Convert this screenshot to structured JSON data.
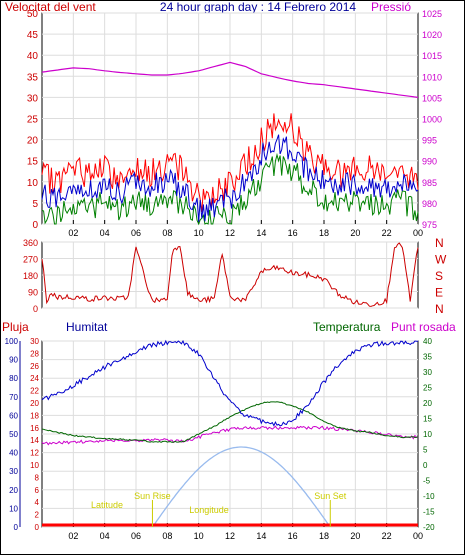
{
  "header": {
    "title": "24 hour graph day : 14 Febrero 2014",
    "left_label": "Velocitat del vent",
    "right_label": "Pressió"
  },
  "labels": {
    "pluja": "Pluja",
    "humitat": "Humitat",
    "temperatura": "Temperatura",
    "punt_rosada": "Punt rosada",
    "sunrise": "Sun Rise",
    "sunset": "Sun Set",
    "latitude": "Latitude",
    "longitude": "Longitude"
  },
  "colors": {
    "wind_max": "#ff0000",
    "wind_avg": "#0000cc",
    "wind_min": "#008000",
    "pressure": "#cc00cc",
    "direction": "#cc0000",
    "humidity": "#0000cc",
    "temperature": "#006600",
    "dewpoint": "#cc00cc",
    "solar": "#99bbee",
    "rain": "#ff0000",
    "text_red": "#cc0000",
    "text_blue": "#000099",
    "annotation": "#cccc00"
  },
  "chart_data": [
    {
      "name": "wind-pressure",
      "type": "line",
      "x_ticks": [
        "02",
        "04",
        "06",
        "08",
        "10",
        "12",
        "14",
        "16",
        "18",
        "20",
        "22",
        "00"
      ],
      "y_left_ticks": [
        "0",
        "5",
        "10",
        "15",
        "20",
        "25",
        "30",
        "35",
        "40",
        "45",
        "50"
      ],
      "y_left_range": [
        0,
        50
      ],
      "y_right_ticks": [
        "975",
        "980",
        "985",
        "990",
        "995",
        "1000",
        "1005",
        "1010",
        "1015",
        "1020",
        "1025"
      ],
      "y_right_range": [
        975,
        1025
      ],
      "hours": [
        0,
        1,
        2,
        3,
        4,
        5,
        6,
        7,
        8,
        9,
        10,
        11,
        12,
        13,
        14,
        15,
        16,
        17,
        18,
        19,
        20,
        21,
        22,
        23,
        24
      ],
      "wind_max": [
        11,
        10,
        13,
        12,
        13,
        10,
        14,
        12,
        14,
        13,
        6,
        7,
        9,
        14,
        20,
        24,
        23,
        16,
        14,
        12,
        13,
        13,
        12,
        13,
        9
      ],
      "wind_avg": [
        7,
        6,
        9,
        8,
        9,
        7,
        10,
        9,
        10,
        9,
        3,
        4,
        6,
        10,
        16,
        19,
        18,
        12,
        10,
        9,
        10,
        9,
        9,
        10,
        6
      ],
      "wind_min": [
        3,
        2,
        5,
        4,
        5,
        3,
        6,
        5,
        6,
        5,
        0,
        1,
        2,
        6,
        11,
        14,
        13,
        8,
        6,
        5,
        6,
        5,
        5,
        6,
        2
      ],
      "pressure": [
        1011,
        1011.5,
        1012,
        1011.8,
        1011.3,
        1010.9,
        1010.6,
        1010.3,
        1010.3,
        1010.7,
        1011.3,
        1012.3,
        1013.3,
        1012.3,
        1010.6,
        1009.7,
        1008.9,
        1008.3,
        1008,
        1007.5,
        1007,
        1006.5,
        1006,
        1005.5,
        1005
      ]
    },
    {
      "name": "wind-direction",
      "type": "line",
      "y_left_ticks": [
        "0",
        "90",
        "180",
        "270",
        "360"
      ],
      "y_range": [
        0,
        360
      ],
      "y_right_ticks": [
        "N",
        "W",
        "S",
        "E",
        "N"
      ],
      "hours": [
        0,
        0.3,
        0.6,
        1,
        2,
        3,
        4,
        5,
        5.5,
        6,
        7,
        8,
        8.3,
        8.8,
        9.3,
        10,
        11,
        11.5,
        12,
        13,
        14,
        15,
        16,
        17,
        18,
        19,
        20,
        21,
        22,
        22.5,
        23,
        23.5,
        24
      ],
      "direction": [
        270,
        40,
        80,
        60,
        60,
        50,
        55,
        50,
        60,
        330,
        40,
        50,
        300,
        350,
        80,
        40,
        50,
        300,
        60,
        40,
        200,
        220,
        190,
        180,
        160,
        70,
        30,
        20,
        40,
        340,
        340,
        40,
        340
      ]
    },
    {
      "name": "temperature-humidity",
      "type": "line",
      "y_left_ticks": [
        "0",
        "10",
        "20",
        "30",
        "40",
        "50",
        "60",
        "70",
        "80",
        "90",
        "100"
      ],
      "y_left_range": [
        0,
        100
      ],
      "y_rain_ticks": [
        "0",
        "2",
        "4",
        "6",
        "8",
        "10",
        "12",
        "14",
        "16",
        "18",
        "20",
        "22",
        "24",
        "26",
        "28",
        "30"
      ],
      "y_rain_range": [
        0,
        30
      ],
      "y_right_ticks": [
        "-20",
        "-15",
        "-10",
        "-5",
        "0",
        "5",
        "10",
        "15",
        "20",
        "25",
        "30",
        "35",
        "40"
      ],
      "y_right_range": [
        -20,
        40
      ],
      "hours": [
        0,
        1,
        2,
        3,
        4,
        5,
        6,
        7,
        8,
        9,
        10,
        11,
        12,
        13,
        14,
        15,
        16,
        17,
        18,
        19,
        20,
        21,
        22,
        23,
        24
      ],
      "humidity": [
        68,
        72,
        76,
        81,
        86,
        90,
        94,
        98,
        99,
        99,
        93,
        80,
        67,
        60,
        57,
        55,
        57,
        66,
        78,
        88,
        95,
        98,
        99,
        99,
        99
      ],
      "temperature": [
        11.5,
        10.5,
        9.5,
        9,
        8.5,
        8.3,
        8,
        7.5,
        7.5,
        7.5,
        10,
        12.5,
        15.5,
        18,
        20,
        20.5,
        19,
        17,
        14,
        12,
        11,
        10.5,
        9.5,
        9,
        9
      ],
      "dewpoint": [
        7,
        7,
        7.5,
        7.5,
        8,
        8,
        8,
        8,
        8,
        7.5,
        9,
        10.5,
        11.5,
        12,
        12,
        12,
        12,
        12,
        12,
        11.5,
        11,
        10.5,
        10,
        9,
        9
      ],
      "solar_hours": [
        7.05,
        18.4
      ],
      "solar_peak_pct": 43
    }
  ]
}
